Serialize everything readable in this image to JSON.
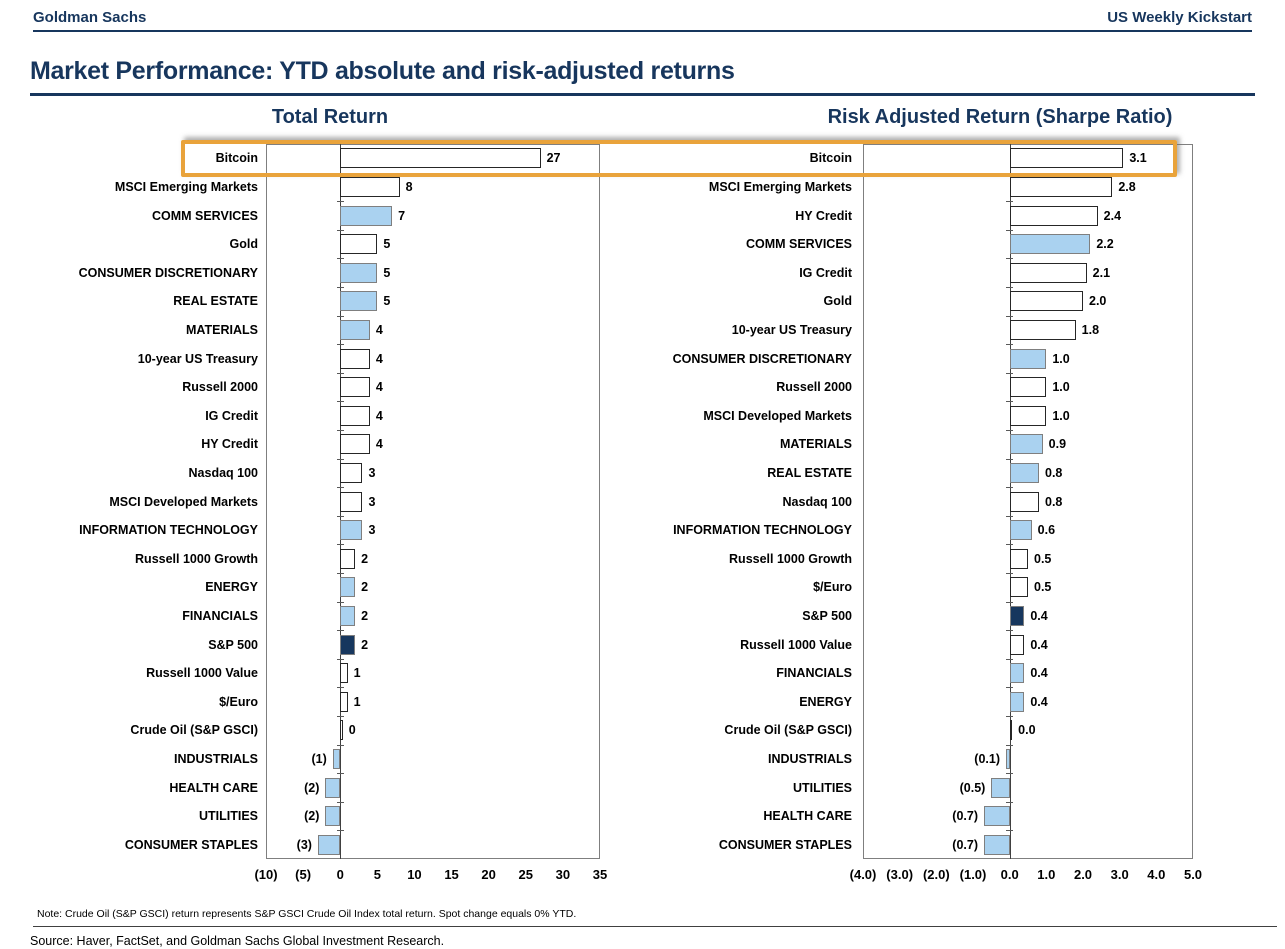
{
  "page": {
    "header_left": "Goldman Sachs",
    "header_right": "US Weekly Kickstart",
    "title": "Market Performance: YTD absolute and risk-adjusted returns",
    "note": "Note: Crude Oil (S&P GSCI) return represents S&P GSCI Crude Oil Index total return. Spot change equals 0% YTD.",
    "source": "Source: Haver, FactSet, and Goldman Sachs Global Investment Research."
  },
  "colors": {
    "navy_text": "#17365d",
    "bar_white_fill": "#ffffff",
    "bar_blue_fill": "#aad2f0",
    "bar_dark_navy_fill": "#17375e",
    "bar_border_gray": "#7f7f7f",
    "highlight_orange": "#e9a33b"
  },
  "chart_data": [
    {
      "type": "bar",
      "orientation": "horizontal",
      "title": "Total Return",
      "xlabel": "",
      "ylabel": "",
      "xlim": [
        -10,
        35
      ],
      "grid": false,
      "legend": "none",
      "highlighted_category": "Bitcoin",
      "tick_values": [
        -10,
        -5,
        0,
        5,
        10,
        15,
        20,
        25,
        30,
        35
      ],
      "tick_labels": [
        "(10)",
        "(5)",
        "0",
        "5",
        "10",
        "15",
        "20",
        "25",
        "30",
        "35"
      ],
      "rows": [
        {
          "label": "Bitcoin",
          "value": 27,
          "display": "27",
          "style": "white"
        },
        {
          "label": "MSCI Emerging Markets",
          "value": 8,
          "display": "8",
          "style": "white"
        },
        {
          "label": "COMM SERVICES",
          "value": 7,
          "display": "7",
          "style": "blue"
        },
        {
          "label": "Gold",
          "value": 5,
          "display": "5",
          "style": "white"
        },
        {
          "label": "CONSUMER DISCRETIONARY",
          "value": 5,
          "display": "5",
          "style": "blue"
        },
        {
          "label": "REAL ESTATE",
          "value": 5,
          "display": "5",
          "style": "blue"
        },
        {
          "label": "MATERIALS",
          "value": 4,
          "display": "4",
          "style": "blue"
        },
        {
          "label": "10-year US Treasury",
          "value": 4,
          "display": "4",
          "style": "white"
        },
        {
          "label": "Russell 2000",
          "value": 4,
          "display": "4",
          "style": "white"
        },
        {
          "label": "IG Credit",
          "value": 4,
          "display": "4",
          "style": "white"
        },
        {
          "label": "HY Credit",
          "value": 4,
          "display": "4",
          "style": "white"
        },
        {
          "label": "Nasdaq 100",
          "value": 3,
          "display": "3",
          "style": "white"
        },
        {
          "label": "MSCI Developed Markets",
          "value": 3,
          "display": "3",
          "style": "white"
        },
        {
          "label": "INFORMATION TECHNOLOGY",
          "value": 3,
          "display": "3",
          "style": "blue"
        },
        {
          "label": "Russell 1000 Growth",
          "value": 2,
          "display": "2",
          "style": "white"
        },
        {
          "label": "ENERGY",
          "value": 2,
          "display": "2",
          "style": "blue"
        },
        {
          "label": "FINANCIALS",
          "value": 2,
          "display": "2",
          "style": "blue"
        },
        {
          "label": "S&P 500",
          "value": 2,
          "display": "2",
          "style": "dark"
        },
        {
          "label": "Russell 1000 Value",
          "value": 1,
          "display": "1",
          "style": "white"
        },
        {
          "label": "$/Euro",
          "value": 1,
          "display": "1",
          "style": "white"
        },
        {
          "label": "Crude Oil (S&P GSCI)",
          "value": 0,
          "display": "0",
          "style": "white"
        },
        {
          "label": "INDUSTRIALS",
          "value": -1,
          "display": "(1)",
          "style": "blue"
        },
        {
          "label": "HEALTH CARE",
          "value": -2,
          "display": "(2)",
          "style": "blue"
        },
        {
          "label": "UTILITIES",
          "value": -2,
          "display": "(2)",
          "style": "blue"
        },
        {
          "label": "CONSUMER STAPLES",
          "value": -3,
          "display": "(3)",
          "style": "blue"
        }
      ]
    },
    {
      "type": "bar",
      "orientation": "horizontal",
      "title": "Risk Adjusted Return (Sharpe Ratio)",
      "xlabel": "",
      "ylabel": "",
      "xlim": [
        -4,
        5
      ],
      "grid": false,
      "legend": "none",
      "highlighted_category": "Bitcoin",
      "tick_values": [
        -4,
        -3,
        -2,
        -1,
        0,
        1,
        2,
        3,
        4,
        5
      ],
      "tick_labels": [
        "(4.0)",
        "(3.0)",
        "(2.0)",
        "(1.0)",
        "0.0",
        "1.0",
        "2.0",
        "3.0",
        "4.0",
        "5.0"
      ],
      "rows": [
        {
          "label": "Bitcoin",
          "value": 3.1,
          "display": "3.1",
          "style": "white"
        },
        {
          "label": "MSCI Emerging Markets",
          "value": 2.8,
          "display": "2.8",
          "style": "white"
        },
        {
          "label": "HY Credit",
          "value": 2.4,
          "display": "2.4",
          "style": "white"
        },
        {
          "label": "COMM SERVICES",
          "value": 2.2,
          "display": "2.2",
          "style": "blue"
        },
        {
          "label": "IG Credit",
          "value": 2.1,
          "display": "2.1",
          "style": "white"
        },
        {
          "label": "Gold",
          "value": 2.0,
          "display": "2.0",
          "style": "white"
        },
        {
          "label": "10-year US Treasury",
          "value": 1.8,
          "display": "1.8",
          "style": "white"
        },
        {
          "label": "CONSUMER DISCRETIONARY",
          "value": 1.0,
          "display": "1.0",
          "style": "blue"
        },
        {
          "label": "Russell 2000",
          "value": 1.0,
          "display": "1.0",
          "style": "white"
        },
        {
          "label": "MSCI Developed Markets",
          "value": 1.0,
          "display": "1.0",
          "style": "white"
        },
        {
          "label": "MATERIALS",
          "value": 0.9,
          "display": "0.9",
          "style": "blue"
        },
        {
          "label": "REAL ESTATE",
          "value": 0.8,
          "display": "0.8",
          "style": "blue"
        },
        {
          "label": "Nasdaq 100",
          "value": 0.8,
          "display": "0.8",
          "style": "white"
        },
        {
          "label": "INFORMATION TECHNOLOGY",
          "value": 0.6,
          "display": "0.6",
          "style": "blue"
        },
        {
          "label": "Russell 1000 Growth",
          "value": 0.5,
          "display": "0.5",
          "style": "white"
        },
        {
          "label": "$/Euro",
          "value": 0.5,
          "display": "0.5",
          "style": "white"
        },
        {
          "label": "S&P 500",
          "value": 0.4,
          "display": "0.4",
          "style": "dark"
        },
        {
          "label": "Russell 1000 Value",
          "value": 0.4,
          "display": "0.4",
          "style": "white"
        },
        {
          "label": "FINANCIALS",
          "value": 0.4,
          "display": "0.4",
          "style": "blue"
        },
        {
          "label": "ENERGY",
          "value": 0.4,
          "display": "0.4",
          "style": "blue"
        },
        {
          "label": "Crude Oil (S&P GSCI)",
          "value": 0.0,
          "display": "0.0",
          "style": "white"
        },
        {
          "label": "INDUSTRIALS",
          "value": -0.1,
          "display": "(0.1)",
          "style": "blue"
        },
        {
          "label": "UTILITIES",
          "value": -0.5,
          "display": "(0.5)",
          "style": "blue"
        },
        {
          "label": "HEALTH CARE",
          "value": -0.7,
          "display": "(0.7)",
          "style": "blue"
        },
        {
          "label": "CONSUMER STAPLES",
          "value": -0.7,
          "display": "(0.7)",
          "style": "blue"
        }
      ]
    }
  ]
}
